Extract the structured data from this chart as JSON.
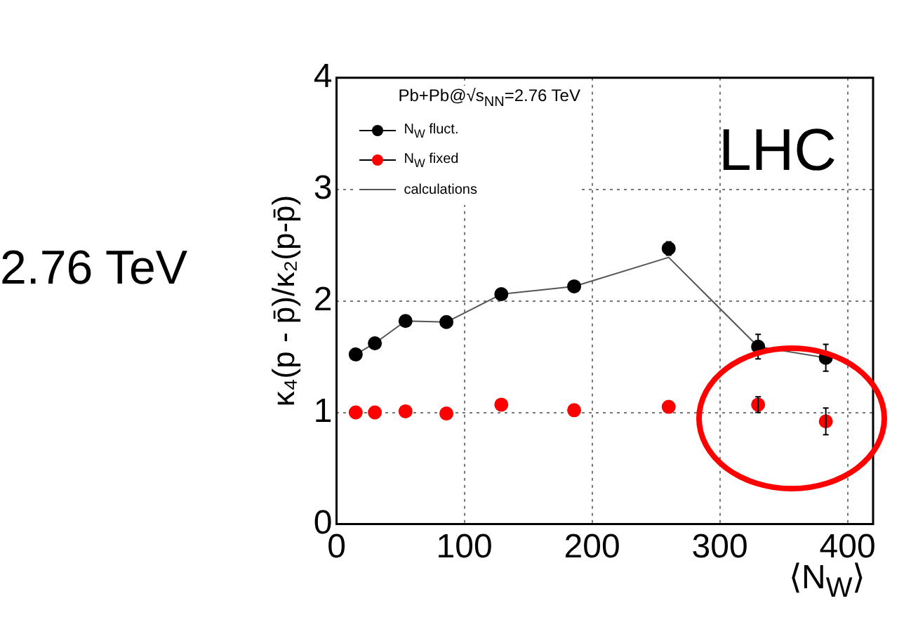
{
  "chart_data": {
    "type": "scatter",
    "legend_title": "Pb+Pb@√s$_{NN}$=2.76 TeV",
    "xlabel": "⟨N$_{W}$⟩",
    "ylabel": "κ₄(p - p̄)/κ₂(p-p̄)",
    "annotations": [
      "LHC",
      "2.76 TeV"
    ],
    "x": [
      15,
      30,
      54,
      86,
      129,
      186,
      260,
      330,
      383
    ],
    "series": [
      {
        "name": "N$_{W}$ fluct.",
        "color": "#000000",
        "values": [
          1.52,
          1.62,
          1.82,
          1.81,
          2.06,
          2.13,
          2.47,
          1.59,
          1.49
        ],
        "errors": [
          null,
          null,
          null,
          null,
          null,
          null,
          0.06,
          0.11,
          0.12
        ]
      },
      {
        "name": "N$_{W}$ fixed",
        "color": "#ff0000",
        "values": [
          1.0,
          1.0,
          1.01,
          0.99,
          1.07,
          1.02,
          1.05,
          1.07,
          0.92
        ],
        "errors": [
          null,
          null,
          null,
          null,
          null,
          null,
          null,
          0.07,
          0.12
        ]
      },
      {
        "name": "calculations",
        "type": "line",
        "color": "#555555",
        "marker": "none",
        "values": [
          1.52,
          1.62,
          1.82,
          1.81,
          2.06,
          2.13,
          2.39,
          1.59,
          1.49
        ]
      }
    ],
    "xlim": [
      0,
      420
    ],
    "xticks": [
      0,
      100,
      200,
      300,
      400
    ],
    "ylim": [
      0,
      4
    ],
    "yticks": [
      0,
      1,
      2,
      3,
      4
    ],
    "grid": true,
    "legend": "top left",
    "marker": "circle",
    "line_style": "solid"
  }
}
